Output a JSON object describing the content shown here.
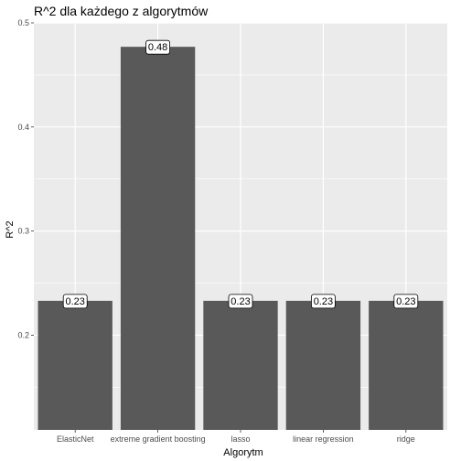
{
  "chart_data": {
    "type": "bar",
    "title": "R^2 dla każdego z algorytmów",
    "xlabel": "Algorytm",
    "ylabel": "R^2",
    "categories": [
      "ElasticNet",
      "extreme gradient boosting",
      "lasso",
      "linear regression",
      "ridge"
    ],
    "values": [
      0.233,
      0.477,
      0.233,
      0.233,
      0.233
    ],
    "data_labels": [
      "0.23",
      "0.48",
      "0.23",
      "0.23",
      "0.23"
    ],
    "ylim": [
      0.109,
      0.5
    ],
    "yticks": [
      0.2,
      0.3,
      0.4,
      0.5
    ],
    "ytick_labels": [
      "0.2",
      "0.3",
      "0.4",
      "0.5"
    ],
    "grid": true,
    "colors": {
      "panel_background": "#ebebeb",
      "grid_major": "#ffffff",
      "bar_fill": "#595959",
      "label_fill": "#ffffff",
      "label_border": "#000000",
      "tick_text": "#4d4d4d"
    }
  }
}
